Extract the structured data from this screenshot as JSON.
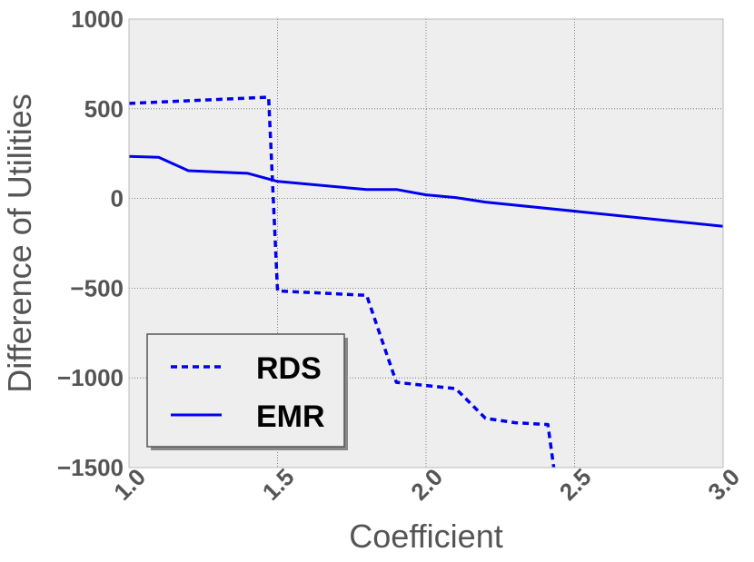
{
  "chart_data": {
    "type": "line",
    "title": "",
    "xlabel": "Coefficient",
    "ylabel": "Difference of Utilities",
    "xlim": [
      1.0,
      3.0
    ],
    "ylim": [
      -1500,
      1000
    ],
    "xticks": [
      1.0,
      1.5,
      2.0,
      2.5,
      3.0
    ],
    "xtick_labels": [
      "1.0",
      "1.5",
      "2.0",
      "2.5",
      "3.0"
    ],
    "yticks": [
      1000,
      500,
      0,
      -500,
      -1000,
      -1500
    ],
    "ytick_labels": [
      "1000",
      "500",
      "0",
      "−500",
      "−1000",
      "−1500"
    ],
    "grid": true,
    "background_color": "#eeeeee",
    "legend": {
      "placement": "lower-left"
    },
    "series": [
      {
        "name": "RDS",
        "style": "dashed",
        "color": "#0000ee",
        "x": [
          1.0,
          1.47,
          1.5,
          1.8,
          1.9,
          2.1,
          2.2,
          2.3,
          2.41,
          2.43
        ],
        "y": [
          530,
          565,
          -515,
          -540,
          -1025,
          -1060,
          -1225,
          -1250,
          -1260,
          -1500
        ]
      },
      {
        "name": "EMR",
        "style": "solid",
        "color": "#0000ee",
        "x": [
          1.0,
          1.1,
          1.2,
          1.4,
          1.5,
          1.7,
          1.8,
          1.9,
          2.0,
          2.1,
          2.2,
          3.0
        ],
        "y": [
          235,
          230,
          155,
          140,
          95,
          65,
          50,
          50,
          20,
          5,
          -20,
          -155
        ]
      }
    ]
  }
}
